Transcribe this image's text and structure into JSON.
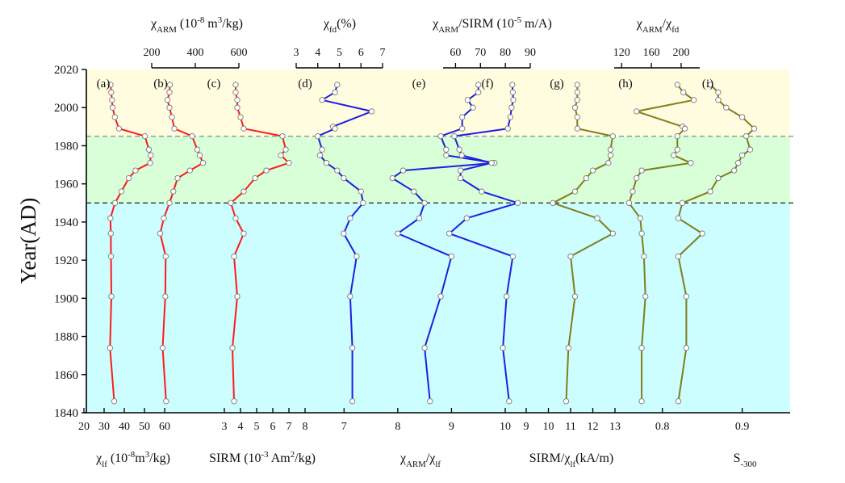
{
  "chart_data": {
    "type": "line",
    "ylabel": "Year(AD)",
    "y_axis": {
      "range": [
        1840,
        2020
      ],
      "ticks": [
        1840,
        1860,
        1880,
        1900,
        1920,
        1940,
        1960,
        1980,
        2000,
        2020
      ]
    },
    "bands": [
      {
        "from": 1985,
        "to": 2020,
        "color": "#fffce0"
      },
      {
        "from": 1950,
        "to": 1985,
        "color": "#d8ffd8"
      },
      {
        "from": 1840,
        "to": 1950,
        "color": "#ccfdff"
      }
    ],
    "dashed_lines": [
      {
        "year": 1985,
        "color": "#888888"
      },
      {
        "year": 1950,
        "color": "#222222"
      }
    ],
    "colors": {
      "red": "#ff1a1a",
      "blue": "#1f1fe0",
      "olive": "#7f7f1a"
    },
    "panels": [
      {
        "id": "a",
        "panel_label": "(a)",
        "color": "red",
        "scale": "bottom",
        "axis_index": 0,
        "points": [
          [
            2012,
            33.2
          ],
          [
            2008,
            33.5
          ],
          [
            2004,
            33.9
          ],
          [
            2000,
            34.2
          ],
          [
            1995,
            35.3
          ],
          [
            1989,
            37.3
          ],
          [
            1985,
            50.2
          ],
          [
            1978,
            52.2
          ],
          [
            1975,
            53.1
          ],
          [
            1971,
            52.8
          ],
          [
            1967,
            45.5
          ],
          [
            1963,
            42.2
          ],
          [
            1956,
            38.6
          ],
          [
            1950,
            35.4
          ],
          [
            1942,
            33.1
          ],
          [
            1934,
            33.3
          ],
          [
            1922,
            33.4
          ],
          [
            1901,
            33.6
          ],
          [
            1874,
            32.9
          ],
          [
            1846,
            35.0
          ]
        ]
      },
      {
        "id": "b",
        "panel_label": "(b)",
        "color": "red",
        "scale": "bottom",
        "axis_index": 0,
        "points": [
          [
            2012,
            62.6
          ],
          [
            2008,
            62.4
          ],
          [
            2004,
            61.4
          ],
          [
            2000,
            62.4
          ],
          [
            1995,
            63.6
          ],
          [
            1989,
            64.8
          ],
          [
            1985,
            73.6
          ],
          [
            1978,
            76.2
          ],
          [
            1975,
            77.4
          ],
          [
            1971,
            79.0
          ],
          [
            1967,
            72.5
          ],
          [
            1963,
            66.4
          ],
          [
            1956,
            64.3
          ],
          [
            1950,
            62.4
          ],
          [
            1942,
            59.6
          ],
          [
            1934,
            57.8
          ],
          [
            1922,
            60.5
          ],
          [
            1901,
            60.3
          ],
          [
            1874,
            59.0
          ],
          [
            1846,
            60.7
          ]
        ]
      },
      {
        "id": "c",
        "panel_label": "(c)",
        "color": "red",
        "scale": "bottom",
        "axis_index": 1,
        "points": [
          [
            2012,
            3.7
          ],
          [
            2008,
            3.7
          ],
          [
            2004,
            3.8
          ],
          [
            2000,
            3.8
          ],
          [
            1995,
            4.0
          ],
          [
            1989,
            4.2
          ],
          [
            1985,
            6.6
          ],
          [
            1978,
            6.8
          ],
          [
            1975,
            6.5
          ],
          [
            1971,
            7.0
          ],
          [
            1967,
            5.6
          ],
          [
            1963,
            4.9
          ],
          [
            1956,
            4.2
          ],
          [
            1950,
            3.4
          ],
          [
            1942,
            3.7
          ],
          [
            1934,
            4.2
          ],
          [
            1922,
            3.6
          ],
          [
            1901,
            3.8
          ],
          [
            1874,
            3.5
          ],
          [
            1846,
            3.6
          ]
        ]
      },
      {
        "id": "d",
        "panel_label": "(d)",
        "color": "blue",
        "scale": "top",
        "axis_index": 0,
        "points": [
          [
            2012,
            4.9
          ],
          [
            2008,
            4.8
          ],
          [
            2004,
            4.2
          ],
          [
            1998,
            6.5
          ],
          [
            1990,
            4.7
          ],
          [
            1989,
            4.8
          ],
          [
            1985,
            4.0
          ],
          [
            1978,
            4.2
          ],
          [
            1975,
            4.1
          ],
          [
            1971,
            4.4
          ],
          [
            1967,
            4.9
          ],
          [
            1963,
            5.2
          ],
          [
            1956,
            6.0
          ],
          [
            1950,
            6.1
          ],
          [
            1942,
            5.5
          ],
          [
            1934,
            5.2
          ],
          [
            1922,
            5.8
          ],
          [
            1901,
            5.5
          ],
          [
            1874,
            5.6
          ],
          [
            1846,
            5.6
          ]
        ]
      },
      {
        "id": "e",
        "panel_label": "(e)",
        "color": "blue",
        "scale": "bottom",
        "axis_index": 2,
        "points": [
          [
            2012,
            9.5
          ],
          [
            2008,
            9.5
          ],
          [
            2004,
            9.3
          ],
          [
            2000,
            9.4
          ],
          [
            1995,
            9.2
          ],
          [
            1989,
            9.2
          ],
          [
            1985,
            8.8
          ],
          [
            1978,
            8.9
          ],
          [
            1975,
            8.9
          ],
          [
            1971,
            9.8
          ],
          [
            1967,
            8.1
          ],
          [
            1963,
            7.9
          ],
          [
            1956,
            8.3
          ],
          [
            1950,
            8.5
          ],
          [
            1942,
            8.4
          ],
          [
            1934,
            8.0
          ],
          [
            1922,
            9.0
          ],
          [
            1901,
            8.8
          ],
          [
            1874,
            8.5
          ],
          [
            1846,
            8.6
          ]
        ]
      },
      {
        "id": "f",
        "panel_label": "(f)",
        "color": "blue",
        "scale": "top",
        "axis_index": 1,
        "points": [
          [
            2012,
            82.8
          ],
          [
            2008,
            83.0
          ],
          [
            2004,
            83.2
          ],
          [
            2000,
            82.5
          ],
          [
            1995,
            82.0
          ],
          [
            1989,
            81.0
          ],
          [
            1985,
            59.5
          ],
          [
            1978,
            61.5
          ],
          [
            1975,
            62.5
          ],
          [
            1971,
            74.5
          ],
          [
            1967,
            62.0
          ],
          [
            1963,
            62.0
          ],
          [
            1956,
            70.5
          ],
          [
            1950,
            85.0
          ],
          [
            1942,
            64.5
          ],
          [
            1934,
            57.5
          ],
          [
            1922,
            83.0
          ],
          [
            1901,
            80.5
          ],
          [
            1874,
            79.0
          ],
          [
            1846,
            81.5
          ]
        ]
      },
      {
        "id": "g",
        "panel_label": "(g)",
        "color": "olive",
        "scale": "bottom",
        "axis_index": 3,
        "points": [
          [
            2012,
            11.3
          ],
          [
            2008,
            11.3
          ],
          [
            2004,
            11.3
          ],
          [
            2000,
            11.2
          ],
          [
            1995,
            11.3
          ],
          [
            1989,
            11.3
          ],
          [
            1985,
            12.9
          ],
          [
            1978,
            12.8
          ],
          [
            1975,
            12.8
          ],
          [
            1971,
            12.7
          ],
          [
            1967,
            12.0
          ],
          [
            1963,
            11.7
          ],
          [
            1956,
            11.2
          ],
          [
            1950,
            10.2
          ],
          [
            1942,
            12.2
          ],
          [
            1934,
            12.9
          ],
          [
            1922,
            11.0
          ],
          [
            1901,
            11.2
          ],
          [
            1874,
            10.9
          ],
          [
            1846,
            10.8
          ]
        ]
      },
      {
        "id": "h",
        "panel_label": "(h)",
        "color": "olive",
        "scale": "top",
        "axis_index": 2,
        "points": [
          [
            2012,
            195
          ],
          [
            2008,
            203
          ],
          [
            2004,
            217
          ],
          [
            1998,
            140
          ],
          [
            1990,
            202
          ],
          [
            1989,
            205
          ],
          [
            1985,
            195
          ],
          [
            1978,
            195
          ],
          [
            1975,
            190
          ],
          [
            1971,
            213
          ],
          [
            1967,
            147
          ],
          [
            1963,
            140
          ],
          [
            1956,
            135
          ],
          [
            1950,
            130
          ],
          [
            1942,
            145
          ],
          [
            1934,
            147
          ],
          [
            1922,
            150
          ],
          [
            1901,
            152
          ],
          [
            1874,
            147
          ],
          [
            1846,
            147
          ]
        ]
      },
      {
        "id": "i",
        "panel_label": "(i)",
        "color": "olive",
        "scale": "bottom",
        "axis_index": 4,
        "points": [
          [
            2012,
            0.86
          ],
          [
            2008,
            0.87
          ],
          [
            2004,
            0.87
          ],
          [
            2000,
            0.88
          ],
          [
            1995,
            0.9
          ],
          [
            1989,
            0.915
          ],
          [
            1985,
            0.905
          ],
          [
            1978,
            0.91
          ],
          [
            1975,
            0.9
          ],
          [
            1971,
            0.895
          ],
          [
            1967,
            0.89
          ],
          [
            1963,
            0.87
          ],
          [
            1956,
            0.86
          ],
          [
            1950,
            0.825
          ],
          [
            1942,
            0.82
          ],
          [
            1934,
            0.85
          ],
          [
            1922,
            0.82
          ],
          [
            1901,
            0.83
          ],
          [
            1874,
            0.83
          ],
          [
            1846,
            0.82
          ]
        ]
      }
    ],
    "bottom_axes": [
      {
        "range": [
          20,
          70
        ],
        "ticks": [
          20,
          30,
          40,
          50,
          60
        ],
        "title_parts": [
          [
            "χ",
            ""
          ],
          [
            "lf",
            "sub"
          ],
          [
            " (10",
            ""
          ],
          [
            "-8",
            "sup"
          ],
          [
            "m",
            ""
          ],
          [
            "3",
            "sup"
          ],
          [
            "/kg)",
            ""
          ]
        ]
      },
      {
        "range": [
          2.5,
          8
        ],
        "ticks": [
          3,
          4,
          5,
          6,
          7,
          8
        ],
        "title_parts": [
          [
            "SIRM (10",
            ""
          ],
          [
            "-3",
            "sup"
          ],
          [
            " Am",
            ""
          ],
          [
            "2",
            "sup"
          ],
          [
            "/kg)",
            ""
          ]
        ]
      },
      {
        "range": [
          6.5,
          10
        ],
        "ticks": [
          7,
          8,
          9,
          10
        ],
        "title_parts": [
          [
            "χ",
            ""
          ],
          [
            "ARM",
            "sub"
          ],
          [
            "/χ",
            ""
          ],
          [
            "lf",
            "sub"
          ]
        ]
      },
      {
        "range": [
          9,
          13
        ],
        "ticks": [
          9,
          10,
          11,
          12,
          13
        ],
        "title_parts": [
          [
            "SIRM/χ",
            ""
          ],
          [
            "lf",
            "sub"
          ],
          [
            "(kA/m)",
            ""
          ]
        ]
      },
      {
        "range": [
          0.77,
          0.96
        ],
        "ticks": [
          0.8,
          0.9
        ],
        "tick_labels": [
          "0.8",
          "0.9"
        ],
        "title_parts": [
          [
            "S",
            ""
          ],
          [
            "-300",
            "sub"
          ]
        ]
      }
    ],
    "top_axes": [
      {
        "range": [
          3,
          7
        ],
        "ticks": [
          3,
          4,
          5,
          6,
          7
        ],
        "title_parts": [
          [
            "χ",
            ""
          ],
          [
            "fd",
            "sub"
          ],
          [
            "(%)",
            ""
          ]
        ]
      },
      {
        "range": [
          55,
          90
        ],
        "ticks": [
          60,
          70,
          80,
          90
        ],
        "title_parts": [
          [
            "χ",
            ""
          ],
          [
            "ARM",
            "sub"
          ],
          [
            "/SIRM (10",
            ""
          ],
          [
            "-5",
            "sup"
          ],
          [
            " m/A)",
            ""
          ]
        ]
      },
      {
        "range": [
          110,
          225
        ],
        "ticks": [
          120,
          160,
          200
        ],
        "title_parts": [
          [
            "χ",
            ""
          ],
          [
            "ARM",
            "sub"
          ],
          [
            "/χ",
            ""
          ],
          [
            "fd",
            "sub"
          ]
        ]
      },
      {
        "range": [
          200,
          600
        ],
        "ticks": [
          200,
          400,
          600
        ],
        "title_parts": [
          [
            "χ",
            ""
          ],
          [
            "ARM",
            "sub"
          ],
          [
            " (10",
            ""
          ],
          [
            "-8",
            "sup"
          ],
          [
            " m",
            ""
          ],
          [
            "3",
            "sup"
          ],
          [
            "/kg)",
            ""
          ]
        ]
      }
    ]
  }
}
